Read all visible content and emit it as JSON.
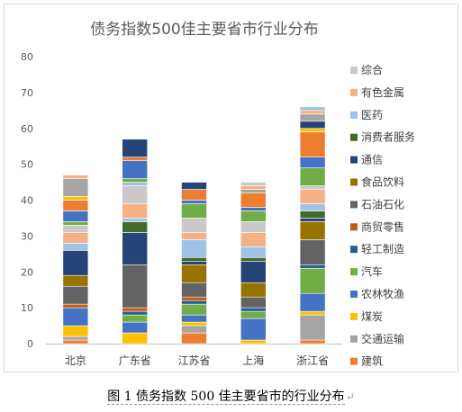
{
  "caption": {
    "text": "图 1  债务指数 500 佳主要省市的行业分布",
    "mark": "↵"
  },
  "chart_data": {
    "type": "bar",
    "stacked": true,
    "title": "债务指数500佳主要省市行业分布",
    "xlabel": "",
    "ylabel": "",
    "ylim": [
      0,
      80
    ],
    "yticks": [
      0,
      10,
      20,
      30,
      40,
      50,
      60,
      70,
      80
    ],
    "grid": false,
    "legend": "right",
    "categories": [
      "北京",
      "广东省",
      "江苏省",
      "上海",
      "浙江省"
    ],
    "series": [
      {
        "name": "建筑",
        "color": "#ED7D31",
        "values": [
          1,
          0,
          3,
          0,
          1
        ]
      },
      {
        "name": "交通运输",
        "color": "#A5A5A5",
        "values": [
          1,
          0,
          2,
          0,
          7
        ]
      },
      {
        "name": "煤炭",
        "color": "#FFC000",
        "values": [
          3,
          3,
          1,
          1,
          1
        ]
      },
      {
        "name": "农林牧渔",
        "color": "#4472C4",
        "values": [
          5,
          3,
          2,
          6,
          5
        ]
      },
      {
        "name": "汽车",
        "color": "#70AD47",
        "values": [
          0,
          2,
          3,
          2,
          7
        ]
      },
      {
        "name": "轻工制造",
        "color": "#255E91",
        "values": [
          0,
          1,
          1,
          1,
          1
        ]
      },
      {
        "name": "商贸零售",
        "color": "#C55A11",
        "values": [
          1,
          1,
          1,
          0,
          0
        ]
      },
      {
        "name": "石油石化",
        "color": "#636363",
        "values": [
          5,
          12,
          4,
          3,
          7
        ]
      },
      {
        "name": "食品饮料",
        "color": "#997300",
        "values": [
          3,
          0,
          5,
          4,
          5
        ]
      },
      {
        "name": "通信",
        "color": "#264478",
        "values": [
          7,
          9,
          1,
          6,
          1
        ]
      },
      {
        "name": "消费者服务",
        "color": "#43682B",
        "values": [
          0,
          3,
          1,
          1,
          2
        ]
      },
      {
        "name": "医药",
        "color": "#9DC3E6",
        "values": [
          2,
          1,
          5,
          3,
          2
        ]
      },
      {
        "name": "有色金属",
        "color": "#F4B183",
        "values": [
          3,
          4,
          2,
          4,
          4
        ]
      },
      {
        "name": "综合",
        "color": "#C9C9C9",
        "values": [
          2,
          5,
          4,
          3,
          1
        ]
      },
      {
        "name": "",
        "color": "#9DC3E6",
        "values": [
          0,
          1,
          0,
          0,
          0
        ]
      },
      {
        "name": "",
        "color": "#70AD47",
        "values": [
          1,
          1,
          4,
          3,
          5
        ]
      },
      {
        "name": "",
        "color": "#4472C4",
        "values": [
          3,
          5,
          1,
          1,
          3
        ]
      },
      {
        "name": "",
        "color": "#ED7D31",
        "values": [
          3,
          1,
          3,
          4,
          7
        ]
      },
      {
        "name": "",
        "color": "#FFC000",
        "values": [
          1,
          0,
          0,
          0,
          1
        ]
      },
      {
        "name": "",
        "color": "#264478",
        "values": [
          0,
          5,
          2,
          0,
          2
        ]
      },
      {
        "name": "",
        "color": "#A5A5A5",
        "values": [
          5,
          0,
          0,
          1,
          2
        ]
      },
      {
        "name": "",
        "color": "#F4B183",
        "values": [
          1,
          0,
          0,
          1,
          1
        ]
      },
      {
        "name": "",
        "color": "#C9C9C9",
        "values": [
          0,
          0,
          0,
          1,
          0
        ]
      },
      {
        "name": "",
        "color": "#9DC3E6",
        "values": [
          0,
          0,
          0,
          0,
          1
        ]
      }
    ],
    "legend_order": [
      "综合",
      "有色金属",
      "医药",
      "消费者服务",
      "通信",
      "食品饮料",
      "石油石化",
      "商贸零售",
      "轻工制造",
      "汽车",
      "农林牧渔",
      "煤炭",
      "交通运输",
      "建筑"
    ]
  }
}
